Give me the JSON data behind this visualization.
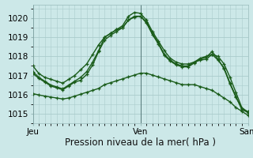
{
  "background_color": "#cce8e8",
  "plot_bg_color": "#cce8e8",
  "grid_color": "#aacccc",
  "line_color": "#1a5c1a",
  "title": "Pression niveau de la mer( hPa )",
  "ylim": [
    1014.5,
    1020.7
  ],
  "yticks": [
    1015,
    1016,
    1017,
    1018,
    1019,
    1020
  ],
  "xtick_labels": [
    "Jeu",
    "Ven",
    "Sam"
  ],
  "xtick_positions": [
    0,
    18,
    36
  ],
  "vline_positions": [
    0,
    18,
    36
  ],
  "series": [
    [
      1017.5,
      1017.1,
      1016.9,
      1016.8,
      1016.7,
      1016.6,
      1016.8,
      1017.0,
      1017.3,
      1017.6,
      1018.1,
      1018.6,
      1019.0,
      1019.2,
      1019.4,
      1019.6,
      1020.1,
      1020.3,
      1020.25,
      1019.9,
      1019.3,
      1018.8,
      1018.3,
      1017.9,
      1017.7,
      1017.6,
      1017.6,
      1017.7,
      1017.8,
      1017.85,
      1018.1,
      1018.0,
      1017.6,
      1016.9,
      1016.1,
      1015.3,
      1015.1
    ],
    [
      1017.1,
      1016.85,
      1016.65,
      1016.45,
      1016.35,
      1016.25,
      1016.45,
      1016.65,
      1016.75,
      1017.05,
      1017.55,
      1018.25,
      1018.85,
      1019.1,
      1019.3,
      1019.5,
      1019.9,
      1020.05,
      1020.1,
      1019.75,
      1019.15,
      1018.65,
      1018.05,
      1017.75,
      1017.55,
      1017.45,
      1017.45,
      1017.65,
      1017.85,
      1017.95,
      1018.25,
      1017.85,
      1017.35,
      1016.55,
      1015.85,
      1015.25,
      1015.05
    ],
    [
      1017.2,
      1016.9,
      1016.7,
      1016.5,
      1016.4,
      1016.3,
      1016.5,
      1016.7,
      1016.9,
      1017.2,
      1017.7,
      1018.3,
      1019.0,
      1019.2,
      1019.4,
      1019.5,
      1019.9,
      1020.1,
      1020.1,
      1019.8,
      1019.2,
      1018.7,
      1018.1,
      1017.8,
      1017.6,
      1017.5,
      1017.5,
      1017.7,
      1017.9,
      1018.0,
      1018.1,
      1017.8,
      1017.4,
      1016.6,
      1015.9,
      1015.2,
      1015.1
    ],
    [
      1016.05,
      1015.98,
      1015.92,
      1015.87,
      1015.82,
      1015.77,
      1015.82,
      1015.92,
      1016.02,
      1016.12,
      1016.22,
      1016.32,
      1016.52,
      1016.62,
      1016.72,
      1016.82,
      1016.92,
      1017.02,
      1017.12,
      1017.12,
      1017.02,
      1016.92,
      1016.82,
      1016.72,
      1016.62,
      1016.52,
      1016.52,
      1016.52,
      1016.42,
      1016.32,
      1016.22,
      1016.02,
      1015.82,
      1015.62,
      1015.32,
      1015.12,
      1014.92
    ]
  ],
  "marker": "+",
  "markersize": 3.5,
  "linewidth": 1.0,
  "title_fontsize": 8.5,
  "tick_fontsize": 7.5
}
